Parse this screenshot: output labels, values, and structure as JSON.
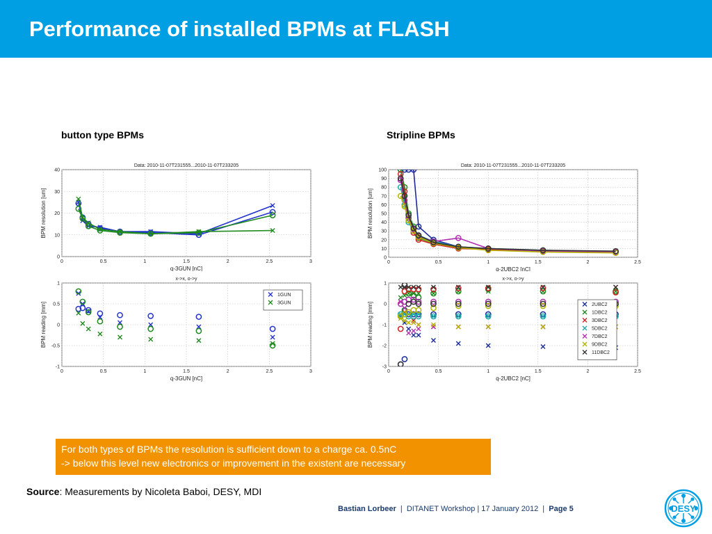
{
  "slide": {
    "title": "Performance of installed BPMs at FLASH",
    "label_left": "button type BPMs",
    "label_right": "Stripline BPMs",
    "note_line1": "For both types of BPMs the resolution is sufficient down to a charge ca. 0.5nC",
    "note_line2": "-> below this level new electronics or improvement in the existent are necessary",
    "source_label": "Source",
    "source_text": ": Measurements by Nicoleta Baboi, DESY, MDI",
    "footer_author": "Bastian Lorbeer",
    "footer_event": "DITANET Workshop | 17 January 2012",
    "footer_page": "Page 5",
    "logo_text": "DESY"
  },
  "chart_data": [
    {
      "type": "line",
      "title": "Data: 2010-11-07T231555...2010-11-07T233205",
      "xlabel": "q-3GUN [nC]",
      "ylabel": "BPM resolution [um]",
      "xlim": [
        0,
        3
      ],
      "ylim": [
        0,
        40
      ],
      "xticks": [
        "0",
        "0.5",
        "1",
        "1.5",
        "2",
        "2.5",
        "3"
      ],
      "yticks": [
        "0",
        "10",
        "20",
        "30",
        "40"
      ],
      "grid": true,
      "x": [
        0.2,
        0.25,
        0.32,
        0.46,
        0.7,
        1.07,
        1.65,
        2.54
      ],
      "series": [
        {
          "values": [
            25,
            16.5,
            14,
            13.5,
            11.5,
            11.5,
            10.5,
            23.5
          ],
          "color": "#2233cc",
          "marker": "x"
        },
        {
          "values": [
            24.5,
            18,
            15,
            13,
            11.5,
            11,
            10,
            20.5
          ],
          "color": "#2233cc",
          "marker": "o"
        },
        {
          "values": [
            26.5,
            18,
            15.5,
            12.5,
            11.5,
            10.5,
            11.5,
            12
          ],
          "color": "#1f8a1f",
          "marker": "x"
        },
        {
          "values": [
            22,
            17.5,
            14,
            12,
            11,
            10.5,
            11,
            19
          ],
          "color": "#1f8a1f",
          "marker": "o"
        }
      ]
    },
    {
      "type": "line",
      "title": "Data: 2010-11-07T231555...2010-11-07T233205",
      "xlabel": "q-2UBC2 [nC]",
      "ylabel": "BPM resolution [um]",
      "xlim": [
        0,
        2.5
      ],
      "ylim": [
        0,
        100
      ],
      "xticks": [
        "0",
        "0.5",
        "1",
        "1.5",
        "2",
        "2.5"
      ],
      "yticks": [
        "0",
        "10",
        "20",
        "30",
        "40",
        "50",
        "60",
        "70",
        "80",
        "90",
        "100"
      ],
      "grid": true,
      "x": [
        0.12,
        0.16,
        0.2,
        0.25,
        0.3,
        0.45,
        0.7,
        1.0,
        1.55,
        2.28
      ],
      "series": [
        {
          "values": [
            100,
            100,
            100,
            100,
            35,
            20,
            12,
            9,
            7,
            6
          ],
          "color": "#1a2a9a"
        },
        {
          "values": [
            100,
            80,
            50,
            35,
            22,
            16,
            11,
            9,
            7,
            6
          ],
          "color": "#1f8a1f"
        },
        {
          "values": [
            95,
            75,
            45,
            28,
            20,
            15,
            10,
            9,
            7,
            6
          ],
          "color": "#cc2222"
        },
        {
          "values": [
            80,
            60,
            40,
            30,
            25,
            18,
            12,
            10,
            8,
            6
          ],
          "color": "#22aaaa"
        },
        {
          "values": [
            88,
            65,
            45,
            32,
            24,
            18,
            22,
            10,
            7,
            6
          ],
          "color": "#b030b0"
        },
        {
          "values": [
            70,
            58,
            42,
            30,
            23,
            16,
            11,
            8,
            6,
            5
          ],
          "color": "#b3b300"
        },
        {
          "values": [
            90,
            70,
            48,
            33,
            25,
            17,
            12,
            10,
            8,
            7
          ],
          "color": "#333333"
        }
      ]
    },
    {
      "type": "scatter",
      "title": "x->x, o->y",
      "xlabel": "q-3GUN [nC]",
      "ylabel": "BPM reading [mm]",
      "xlim": [
        0,
        3
      ],
      "ylim": [
        -1,
        1
      ],
      "xticks": [
        "0",
        "0.5",
        "1",
        "1.5",
        "2",
        "2.5",
        "3"
      ],
      "yticks": [
        "-1",
        "-0.5",
        "0",
        "0.5",
        "1"
      ],
      "grid": true,
      "legend": {
        "position": "top-right",
        "entries": [
          {
            "name": "1GUN",
            "color": "#2233cc"
          },
          {
            "name": "3GUN",
            "color": "#1f8a1f"
          }
        ]
      },
      "series": [
        {
          "name": "1GUN",
          "marker": "x",
          "color": "#2233cc",
          "points": [
            [
              0.2,
              0.75
            ],
            [
              0.25,
              0.5
            ],
            [
              0.32,
              0.32
            ],
            [
              0.46,
              0.18
            ],
            [
              0.7,
              0.05
            ],
            [
              1.07,
              0
            ],
            [
              1.65,
              -0.05
            ],
            [
              2.54,
              -0.3
            ]
          ]
        },
        {
          "name": "1GUN",
          "marker": "o",
          "color": "#2233cc",
          "points": [
            [
              0.2,
              0.38
            ],
            [
              0.25,
              0.4
            ],
            [
              0.32,
              0.35
            ],
            [
              0.46,
              0.27
            ],
            [
              0.7,
              0.23
            ],
            [
              1.07,
              0.21
            ],
            [
              1.65,
              0.19
            ],
            [
              2.54,
              -0.1
            ]
          ]
        },
        {
          "name": "3GUN",
          "marker": "x",
          "color": "#1f8a1f",
          "points": [
            [
              0.2,
              0.28
            ],
            [
              0.25,
              0.03
            ],
            [
              0.32,
              -0.1
            ],
            [
              0.46,
              -0.22
            ],
            [
              0.7,
              -0.3
            ],
            [
              1.07,
              -0.35
            ],
            [
              1.65,
              -0.38
            ],
            [
              2.54,
              -0.45
            ]
          ]
        },
        {
          "name": "3GUN",
          "marker": "o",
          "color": "#1f8a1f",
          "points": [
            [
              0.2,
              0.8
            ],
            [
              0.25,
              0.55
            ],
            [
              0.32,
              0.3
            ],
            [
              0.46,
              0.08
            ],
            [
              0.7,
              -0.05
            ],
            [
              1.07,
              -0.1
            ],
            [
              1.65,
              -0.15
            ],
            [
              2.54,
              -0.5
            ]
          ]
        }
      ]
    },
    {
      "type": "scatter",
      "title": "x->x, o->y",
      "xlabel": "q-2UBC2 [nC]",
      "ylabel": "BPM reading [mm]",
      "xlim": [
        0,
        2.5
      ],
      "ylim": [
        -3,
        1
      ],
      "xticks": [
        "0",
        "0.5",
        "1",
        "1.5",
        "2",
        "2.5"
      ],
      "yticks": [
        "-3",
        "-2",
        "-1",
        "0",
        "1"
      ],
      "grid": true,
      "legend": {
        "position": "right",
        "entries": [
          {
            "name": "2UBC2",
            "color": "#1a2a9a"
          },
          {
            "name": "1DBC2",
            "color": "#1f8a1f"
          },
          {
            "name": "3DBC2",
            "color": "#cc2222"
          },
          {
            "name": "5DBC2",
            "color": "#22aaaa"
          },
          {
            "name": "7DBC2",
            "color": "#b030b0"
          },
          {
            "name": "9DBC2",
            "color": "#b3b300"
          },
          {
            "name": "11DBC2",
            "color": "#333333"
          }
        ]
      },
      "x": [
        0.12,
        0.16,
        0.2,
        0.25,
        0.3,
        0.45,
        0.7,
        1.0,
        1.55,
        2.28
      ],
      "series": [
        {
          "name": "2UBC2",
          "marker": "x",
          "color": "#1a2a9a",
          "values": [
            -0.6,
            -0.9,
            -1.2,
            -1.5,
            -1.5,
            -1.75,
            -1.9,
            -2.0,
            -2.05,
            -2.1
          ]
        },
        {
          "name": "2UBC2",
          "marker": "o",
          "color": "#1a2a9a",
          "values": [
            -2.9,
            -2.65,
            -0.5,
            -0.5,
            -0.5,
            -0.5,
            -0.5,
            -0.5,
            -0.5,
            -0.5
          ]
        },
        {
          "name": "1DBC2",
          "marker": "x",
          "color": "#1f8a1f",
          "values": [
            0.3,
            0.4,
            0.5,
            0.5,
            0.5,
            0.5,
            0.6,
            0.6,
            0.6,
            0.6
          ]
        },
        {
          "name": "1DBC2",
          "marker": "o",
          "color": "#1f8a1f",
          "values": [
            -0.6,
            -0.3,
            0.5,
            0.4,
            0.3,
            0.5,
            0.6,
            0.7,
            0.6,
            0.6
          ]
        },
        {
          "name": "3DBC2",
          "marker": "x",
          "color": "#cc2222",
          "values": [
            0.1,
            -0.4,
            -0.5,
            -0.8,
            -1.0,
            -1.1,
            -1.1,
            -1.1,
            -1.1,
            0.8
          ]
        },
        {
          "name": "3DBC2",
          "marker": "o",
          "color": "#cc2222",
          "values": [
            -1.2,
            0.6,
            0.7,
            0.7,
            0.7,
            0.7,
            0.75,
            0.75,
            0.75,
            0.55
          ]
        },
        {
          "name": "5DBC2",
          "marker": "x",
          "color": "#22aaaa",
          "values": [
            -0.5,
            -0.5,
            -0.5,
            -0.5,
            -0.5,
            -0.6,
            -0.6,
            -0.6,
            -0.6,
            -0.6
          ]
        },
        {
          "name": "5DBC2",
          "marker": "o",
          "color": "#22aaaa",
          "values": [
            -0.5,
            -0.5,
            -0.6,
            -0.6,
            -0.6,
            -0.6,
            -0.6,
            -0.6,
            -0.6,
            -0.6
          ]
        },
        {
          "name": "7DBC2",
          "marker": "x",
          "color": "#b030b0",
          "values": [
            0.1,
            -0.2,
            -1.4,
            -1.3,
            -1.2,
            -1.1,
            -1.1,
            -1.1,
            -1.1,
            -1.1
          ]
        },
        {
          "name": "7DBC2",
          "marker": "o",
          "color": "#b030b0",
          "values": [
            0.0,
            0.1,
            0.2,
            0.2,
            0.1,
            0.1,
            0.1,
            0.1,
            0.1,
            0.1
          ]
        },
        {
          "name": "9DBC2",
          "marker": "x",
          "color": "#b3b300",
          "values": [
            -0.7,
            -0.8,
            -0.9,
            -0.9,
            -1.0,
            -1.0,
            -1.1,
            -1.1,
            -1.1,
            -1.1
          ]
        },
        {
          "name": "9DBC2",
          "marker": "o",
          "color": "#b3b300",
          "values": [
            -0.6,
            -0.5,
            -0.4,
            -0.3,
            -0.3,
            -0.2,
            -0.1,
            -0.1,
            -0.1,
            -0.1
          ]
        },
        {
          "name": "11DBC2",
          "marker": "x",
          "color": "#333333",
          "values": [
            0.8,
            0.8,
            0.8,
            0.8,
            0.8,
            0.8,
            0.8,
            0.8,
            0.8,
            0.8
          ]
        },
        {
          "name": "11DBC2",
          "marker": "o",
          "color": "#333333",
          "values": [
            -2.9,
            0.9,
            0.0,
            0.1,
            0.0,
            0.0,
            0.0,
            0.0,
            0.0,
            0.0
          ]
        }
      ]
    }
  ]
}
